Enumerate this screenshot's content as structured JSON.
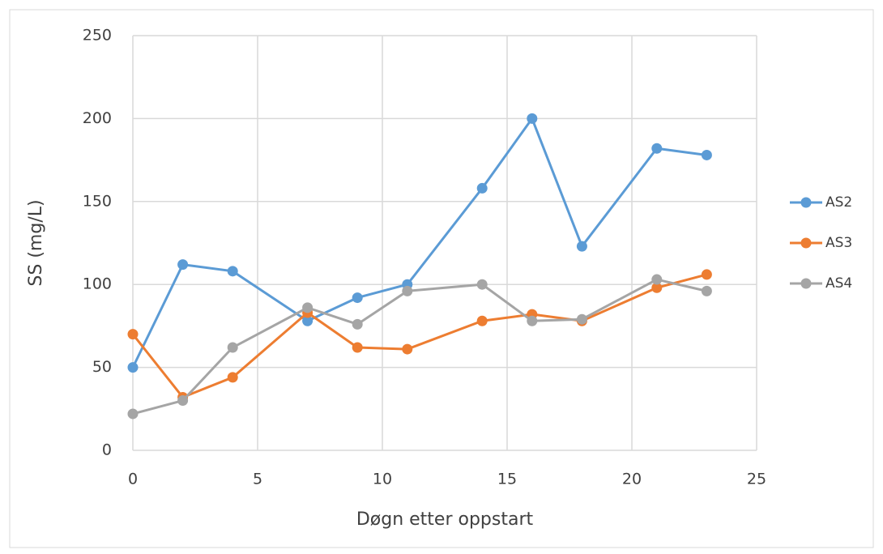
{
  "chart_data": {
    "type": "line",
    "x_label": "Døgn etter oppstart",
    "y_label": "SS (mg/L)",
    "x": [
      0,
      2,
      4,
      7,
      9,
      11,
      14,
      16,
      18,
      21,
      23
    ],
    "series": [
      {
        "name": "AS2",
        "color": "#5b9bd5",
        "values": [
          50,
          112,
          108,
          78,
          92,
          100,
          158,
          200,
          123,
          182,
          178
        ]
      },
      {
        "name": "AS3",
        "color": "#ed7d31",
        "values": [
          70,
          32,
          44,
          83,
          62,
          61,
          78,
          82,
          78,
          98,
          106
        ]
      },
      {
        "name": "AS4",
        "color": "#a5a5a5",
        "values": [
          22,
          30,
          62,
          86,
          76,
          96,
          100,
          78,
          79,
          103,
          96
        ]
      }
    ],
    "xlim": [
      0,
      25
    ],
    "xticks": [
      0,
      5,
      10,
      15,
      20,
      25
    ],
    "ylim": [
      0,
      250
    ],
    "yticks": [
      0,
      50,
      100,
      150,
      200,
      250
    ],
    "grid": true,
    "legend": "right"
  }
}
